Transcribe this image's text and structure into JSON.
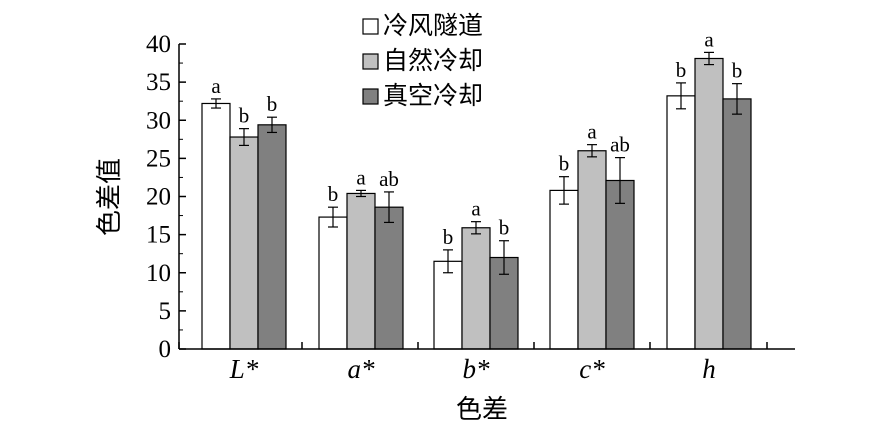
{
  "chart_data": {
    "type": "bar",
    "title": "",
    "xlabel": "色差",
    "ylabel": "色差值",
    "ylim": [
      0,
      40
    ],
    "yticks": [
      0,
      5,
      10,
      15,
      20,
      25,
      30,
      35,
      40
    ],
    "categories": [
      "L*",
      "a*",
      "b*",
      "c*",
      "h"
    ],
    "legend_position": "top-center",
    "series": [
      {
        "name": "冷风隧道",
        "color": "#ffffff",
        "values": [
          32.2,
          17.3,
          11.5,
          20.8,
          33.2
        ],
        "errors": [
          0.6,
          1.3,
          1.5,
          1.8,
          1.7
        ],
        "letters": [
          "a",
          "b",
          "b",
          "b",
          "b"
        ]
      },
      {
        "name": "自然冷却",
        "color": "#c0c0c0",
        "values": [
          27.8,
          20.4,
          15.9,
          26.0,
          38.1
        ],
        "errors": [
          1.1,
          0.4,
          0.8,
          0.8,
          0.8
        ],
        "letters": [
          "b",
          "a",
          "a",
          "a",
          "a"
        ]
      },
      {
        "name": "真空冷却",
        "color": "#808080",
        "values": [
          29.4,
          18.6,
          12.0,
          22.1,
          32.8
        ],
        "errors": [
          1.0,
          2.0,
          2.2,
          3.0,
          2.0
        ],
        "letters": [
          "b",
          "ab",
          "b",
          "ab",
          "b"
        ]
      }
    ]
  }
}
